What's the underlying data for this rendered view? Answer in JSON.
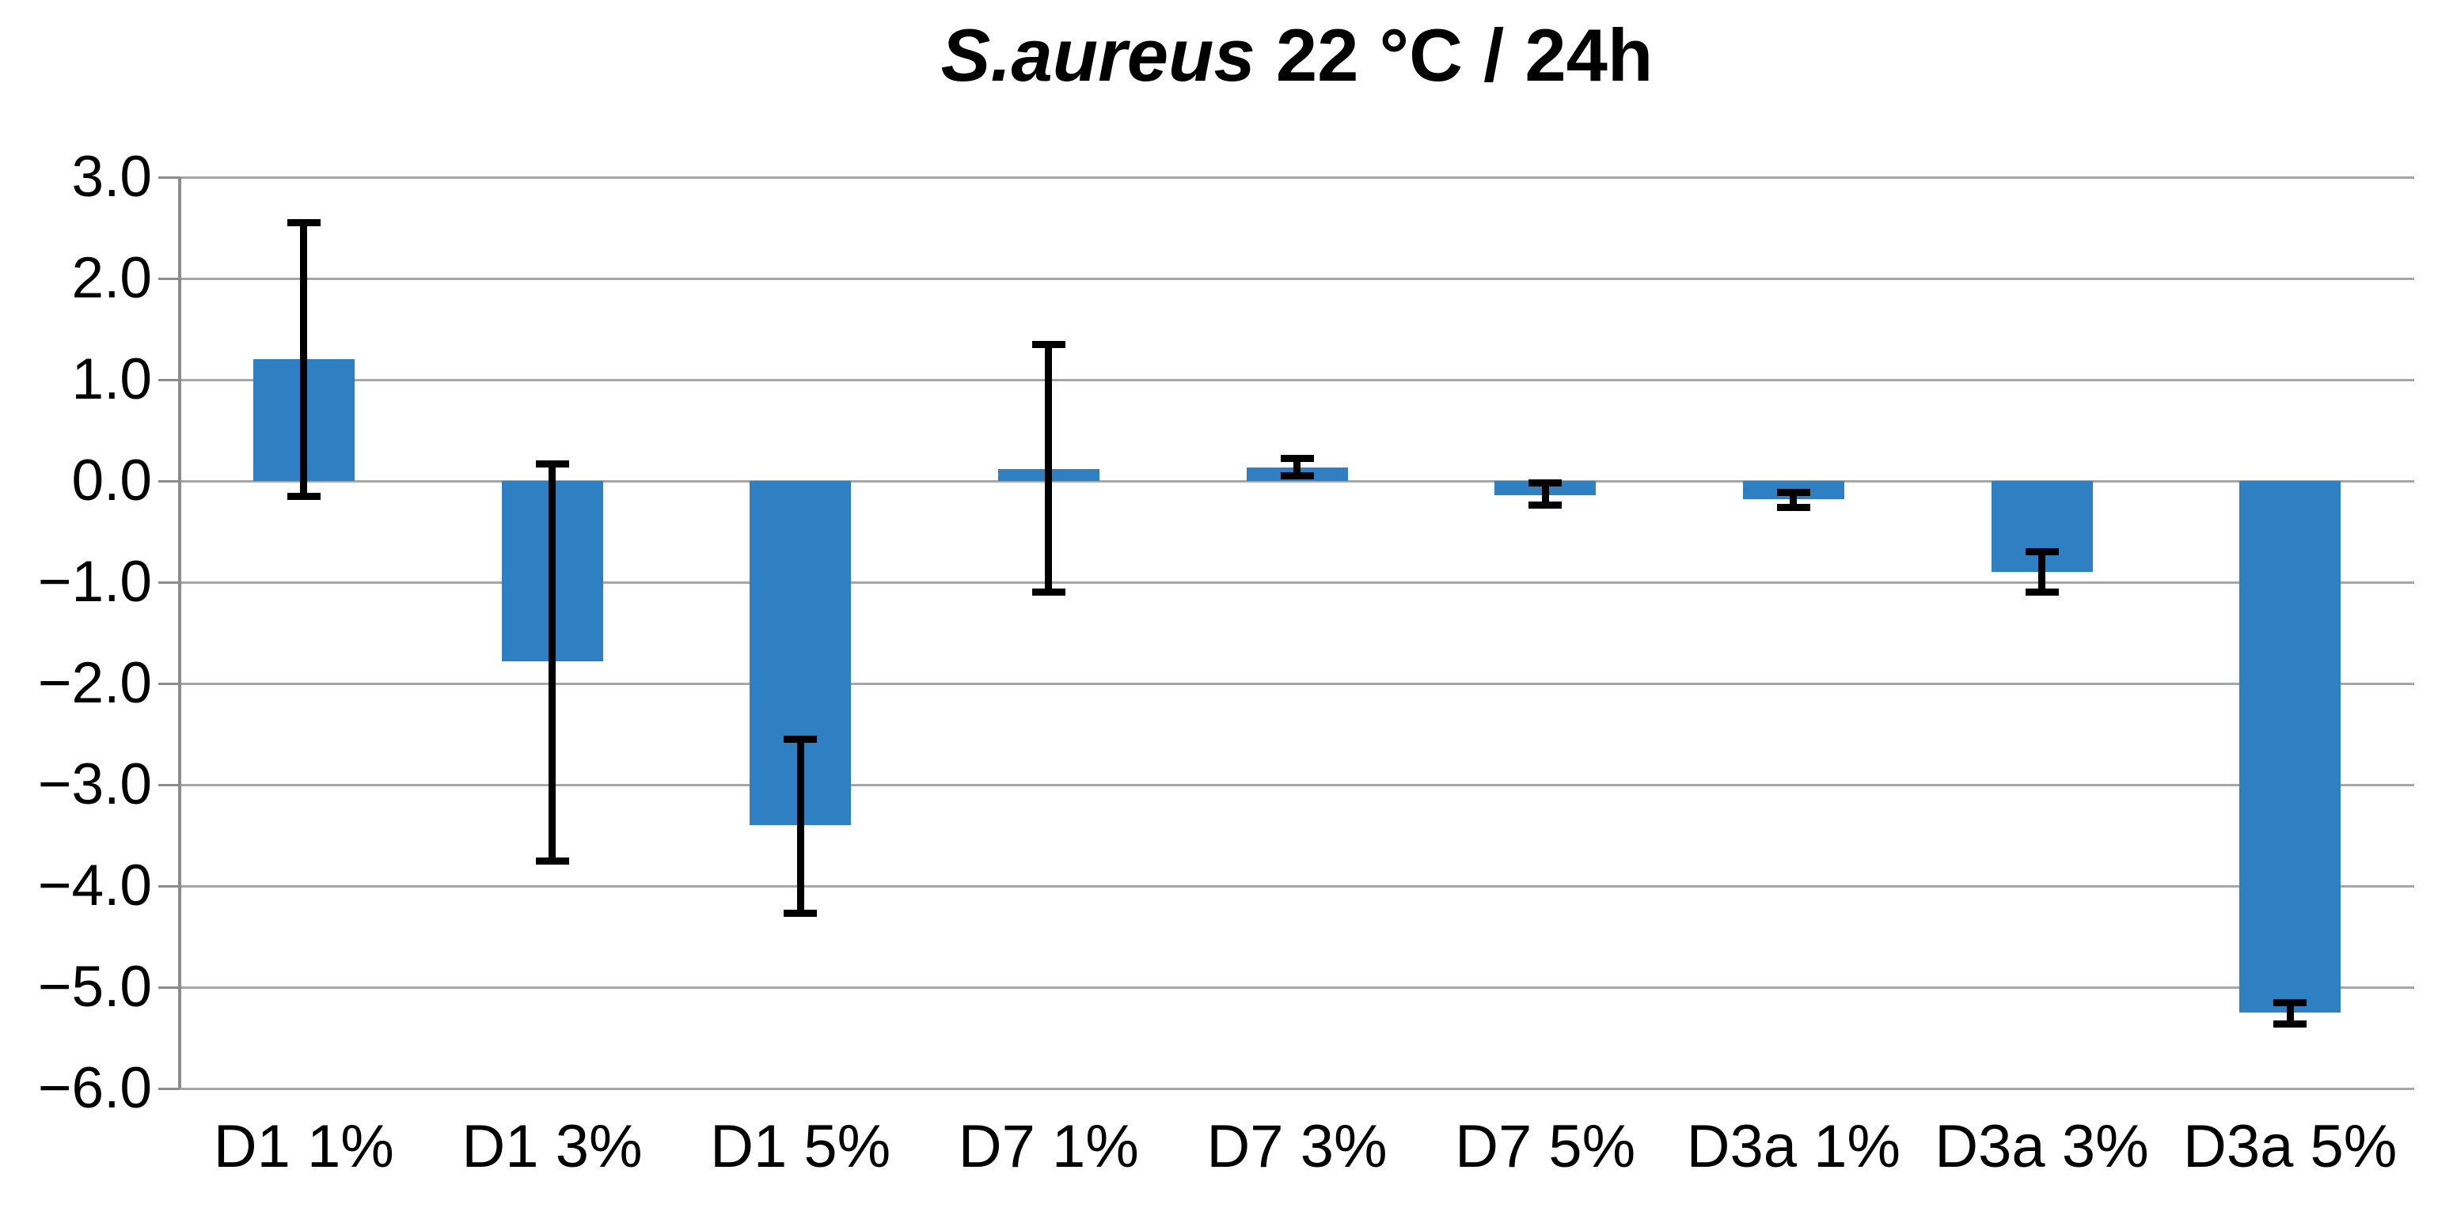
{
  "chart_data": {
    "type": "bar",
    "title": {
      "full": "S.aureus 22 °C / 24h",
      "species": "S.aureus",
      "rest": " 22 °C / 24h"
    },
    "categories": [
      "D1 1%",
      "D1 3%",
      "D1 5%",
      "D7 1%",
      "D7 3%",
      "D7 5%",
      "D3a 1%",
      "D3a 3%",
      "D3a 5%"
    ],
    "values": [
      1.2,
      -1.78,
      -3.4,
      0.12,
      0.13,
      -0.14,
      -0.18,
      -0.9,
      -5.25
    ],
    "error_bars": [
      {
        "high": 2.55,
        "low": -0.15
      },
      {
        "high": 0.17,
        "low": -3.75
      },
      {
        "high": -2.55,
        "low": -4.27
      },
      {
        "high": 1.35,
        "low": -1.1
      },
      {
        "high": 0.22,
        "low": 0.05
      },
      {
        "high": -0.02,
        "low": -0.24
      },
      {
        "high": -0.11,
        "low": -0.26
      },
      {
        "high": -0.7,
        "low": -1.1
      },
      {
        "high": -5.15,
        "low": -5.36
      }
    ],
    "ylim": [
      -6,
      3
    ],
    "ytick_step": 1.0,
    "yticklabels": [
      "3.0",
      "2.0",
      "1.0",
      "0.0",
      "−1.0",
      "−2.0",
      "−3.0",
      "−4.0",
      "−5.0",
      "−6.0"
    ],
    "grid": true,
    "legend": null,
    "xlabel": "",
    "ylabel": "",
    "colors": {
      "bar": "#2E80C3",
      "grid": "#A6A6A6",
      "axis": "#8C8C8C",
      "error": "#000000",
      "text": "#000000",
      "background": "#FFFFFF"
    }
  }
}
